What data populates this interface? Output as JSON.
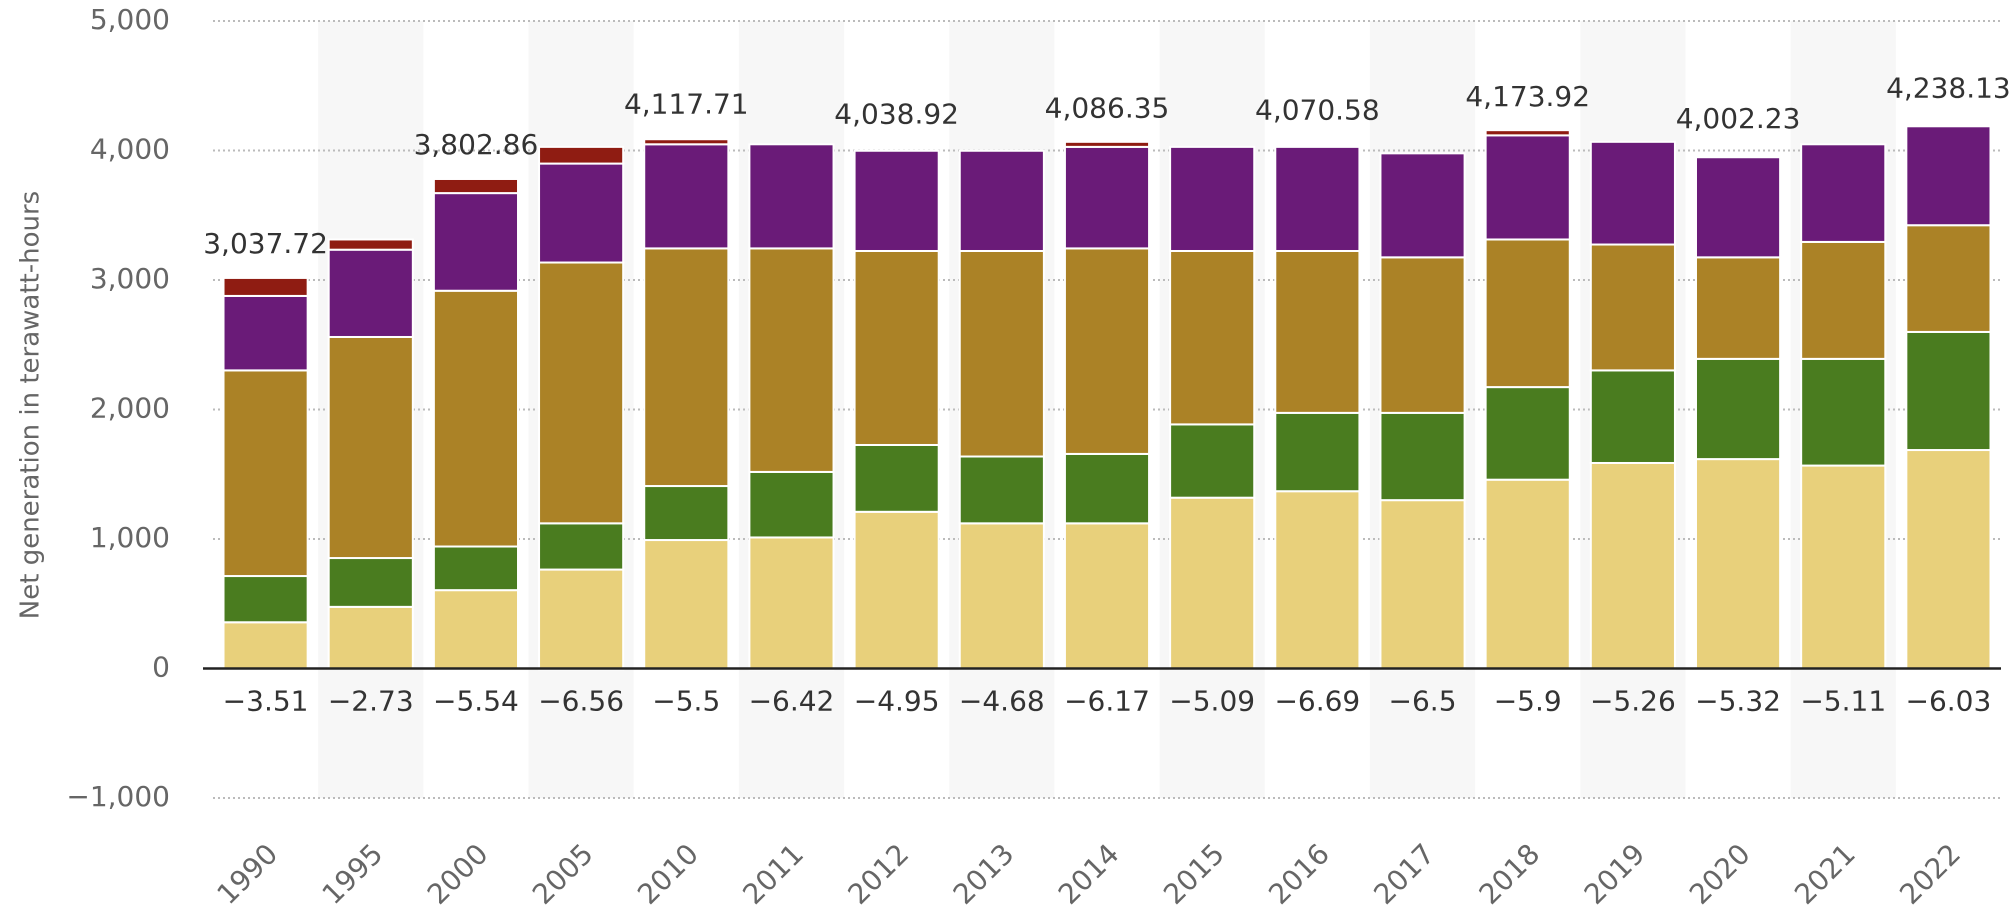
{
  "chart_data": {
    "type": "stacked-bar",
    "y_label": "Net generation in terawatt-hours",
    "categories": [
      "1990",
      "1995",
      "2000",
      "2005",
      "2010",
      "2011",
      "2012",
      "2013",
      "2014",
      "2015",
      "2016",
      "2017",
      "2018",
      "2019",
      "2020",
      "2021",
      "2022"
    ],
    "series": [
      {
        "color": "#e8d07b",
        "values": [
          357,
          476,
          605,
          764,
          992,
          1012,
          1210,
          1121,
          1121,
          1319,
          1369,
          1300,
          1458,
          1587,
          1617,
          1567,
          1687
        ]
      },
      {
        "color": "#4a7c1f",
        "values": [
          357,
          377,
          337,
          357,
          417,
          506,
          516,
          516,
          536,
          566,
          605,
          674,
          715,
          715,
          774,
          824,
          912
        ]
      },
      {
        "color": "#ab8226",
        "values": [
          1588,
          1707,
          1975,
          2014,
          1835,
          1726,
          1498,
          1587,
          1587,
          1339,
          1250,
          1201,
          1140,
          972,
          784,
          903,
          824
        ]
      },
      {
        "color": "#6a1b78",
        "values": [
          575,
          674,
          754,
          764,
          804,
          804,
          774,
          774,
          784,
          804,
          804,
          803,
          804,
          793,
          773,
          754,
          764
        ]
      },
      {
        "color": "#8f1c12",
        "values": [
          139,
          79,
          109,
          129,
          39,
          0,
          0,
          0,
          39,
          0,
          0,
          0,
          40,
          0,
          0,
          0,
          0
        ]
      },
      {
        "color": "#555555",
        "values": [
          -3.51,
          -2.73,
          -5.54,
          -6.56,
          -5.5,
          -6.42,
          -4.95,
          -4.68,
          -6.17,
          -5.09,
          -6.69,
          -6.5,
          -5.9,
          -5.26,
          -5.32,
          -5.11,
          -6.03
        ],
        "value_labels": [
          "−3.51",
          "−2.73",
          "−5.54",
          "−6.56",
          "−5.5",
          "−6.42",
          "−4.95",
          "−4.68",
          "−6.17",
          "−5.09",
          "−6.69",
          "−6.5",
          "−5.9",
          "−5.26",
          "−5.32",
          "−5.11",
          "−6.03"
        ]
      }
    ],
    "totals": {
      "values": [
        3037.72,
        null,
        3802.86,
        null,
        4117.71,
        null,
        4038.92,
        null,
        4086.35,
        null,
        4070.58,
        null,
        4173.92,
        null,
        4002.23,
        null,
        4238.13
      ],
      "value_labels": [
        "3,037.72",
        null,
        "3,802.86",
        null,
        "4,117.71",
        null,
        "4,038.92",
        null,
        "4,086.35",
        null,
        "4,070.58",
        null,
        "4,173.92",
        null,
        "4,002.23",
        null,
        "4,238.13"
      ]
    },
    "ylim": [
      -1000,
      5000
    ],
    "yticks": [
      {
        "value": -1000,
        "label": "−1,000"
      },
      0,
      {
        "value": 1000,
        "label": "1,000"
      },
      {
        "value": 2000,
        "label": "2,000"
      },
      {
        "value": 3000,
        "label": "3,000"
      },
      {
        "value": 4000,
        "label": "4,000"
      },
      {
        "value": 5000,
        "label": "5,000"
      }
    ],
    "grid": true
  }
}
